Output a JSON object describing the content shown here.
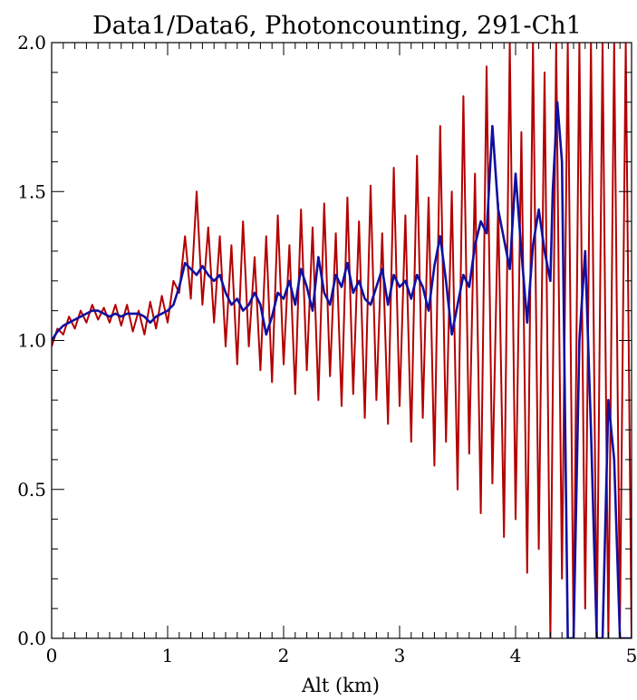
{
  "chart_data": {
    "type": "line",
    "title": "Data1/Data6, Photoncounting, 291-Ch1",
    "xlabel": "Alt (km)",
    "ylabel": "",
    "xlim": [
      0,
      5
    ],
    "ylim": [
      0,
      2
    ],
    "xticks": [
      0,
      1,
      2,
      3,
      4,
      5
    ],
    "xtick_labels": [
      "0",
      "1",
      "2",
      "3",
      "4",
      "5"
    ],
    "yticks": [
      0,
      0.5,
      1,
      1.5,
      2
    ],
    "ytick_labels": [
      "0.0",
      "0.5",
      "1.0",
      "1.5",
      "2.0"
    ],
    "grid": false,
    "series": [
      {
        "color": "#b30000",
        "description": "raw ratio (noisy)",
        "x": [
          0.0,
          0.05,
          0.1,
          0.15,
          0.2,
          0.25,
          0.3,
          0.35,
          0.4,
          0.45,
          0.5,
          0.55,
          0.6,
          0.65,
          0.7,
          0.75,
          0.8,
          0.85,
          0.9,
          0.95,
          1.0,
          1.05,
          1.1,
          1.15,
          1.2,
          1.25,
          1.3,
          1.35,
          1.4,
          1.45,
          1.5,
          1.55,
          1.6,
          1.65,
          1.7,
          1.75,
          1.8,
          1.85,
          1.9,
          1.95,
          2.0,
          2.05,
          2.1,
          2.15,
          2.2,
          2.25,
          2.3,
          2.35,
          2.4,
          2.45,
          2.5,
          2.55,
          2.6,
          2.65,
          2.7,
          2.75,
          2.8,
          2.85,
          2.9,
          2.95,
          3.0,
          3.05,
          3.1,
          3.15,
          3.2,
          3.25,
          3.3,
          3.35,
          3.4,
          3.45,
          3.5,
          3.55,
          3.6,
          3.65,
          3.7,
          3.75,
          3.8,
          3.85,
          3.9,
          3.95,
          4.0,
          4.05,
          4.1,
          4.15,
          4.2,
          4.25,
          4.3,
          4.35,
          4.4,
          4.45,
          4.5,
          4.55,
          4.6,
          4.65,
          4.7,
          4.75,
          4.8,
          4.85,
          4.9,
          4.95,
          5.0
        ],
        "y": [
          0.98,
          1.04,
          1.02,
          1.08,
          1.04,
          1.1,
          1.06,
          1.12,
          1.07,
          1.11,
          1.06,
          1.12,
          1.05,
          1.12,
          1.03,
          1.1,
          1.02,
          1.13,
          1.04,
          1.15,
          1.06,
          1.2,
          1.16,
          1.35,
          1.14,
          1.5,
          1.12,
          1.38,
          1.06,
          1.35,
          0.98,
          1.32,
          0.92,
          1.4,
          0.98,
          1.28,
          0.9,
          1.35,
          0.86,
          1.42,
          0.92,
          1.32,
          0.82,
          1.44,
          0.9,
          1.38,
          0.8,
          1.46,
          0.88,
          1.36,
          0.78,
          1.48,
          0.82,
          1.4,
          0.74,
          1.52,
          0.8,
          1.36,
          0.72,
          1.58,
          0.78,
          1.42,
          0.66,
          1.62,
          0.74,
          1.48,
          0.58,
          1.72,
          0.66,
          1.5,
          0.5,
          1.82,
          0.62,
          1.56,
          0.42,
          1.92,
          0.52,
          1.46,
          0.34,
          2.0,
          0.4,
          1.7,
          0.22,
          2.0,
          0.3,
          1.9,
          0.0,
          2.0,
          0.2,
          2.0,
          0.0,
          2.0,
          0.1,
          2.0,
          0.0,
          2.0,
          0.0,
          2.0,
          0.05,
          2.0,
          0.0
        ]
      },
      {
        "color": "#1010a0",
        "description": "smoothed ratio",
        "x": [
          0.0,
          0.05,
          0.1,
          0.15,
          0.2,
          0.25,
          0.3,
          0.35,
          0.4,
          0.45,
          0.5,
          0.55,
          0.6,
          0.65,
          0.7,
          0.75,
          0.8,
          0.85,
          0.9,
          0.95,
          1.0,
          1.05,
          1.1,
          1.15,
          1.2,
          1.25,
          1.3,
          1.35,
          1.4,
          1.45,
          1.5,
          1.55,
          1.6,
          1.65,
          1.7,
          1.75,
          1.8,
          1.85,
          1.9,
          1.95,
          2.0,
          2.05,
          2.1,
          2.15,
          2.2,
          2.25,
          2.3,
          2.35,
          2.4,
          2.45,
          2.5,
          2.55,
          2.6,
          2.65,
          2.7,
          2.75,
          2.8,
          2.85,
          2.9,
          2.95,
          3.0,
          3.05,
          3.1,
          3.15,
          3.2,
          3.25,
          3.3,
          3.35,
          3.4,
          3.45,
          3.5,
          3.55,
          3.6,
          3.65,
          3.7,
          3.75,
          3.8,
          3.85,
          3.9,
          3.95,
          4.0,
          4.05,
          4.1,
          4.15,
          4.2,
          4.25,
          4.3,
          4.32,
          4.36,
          4.4,
          4.45,
          4.5,
          4.55,
          4.6,
          4.65,
          4.7,
          4.75,
          4.8,
          4.85,
          4.9,
          4.95,
          5.0
        ],
        "y": [
          1.0,
          1.03,
          1.05,
          1.06,
          1.07,
          1.08,
          1.09,
          1.1,
          1.1,
          1.09,
          1.08,
          1.09,
          1.08,
          1.09,
          1.09,
          1.09,
          1.08,
          1.06,
          1.08,
          1.09,
          1.1,
          1.12,
          1.18,
          1.26,
          1.24,
          1.22,
          1.25,
          1.22,
          1.2,
          1.22,
          1.16,
          1.12,
          1.14,
          1.1,
          1.12,
          1.16,
          1.12,
          1.02,
          1.08,
          1.16,
          1.14,
          1.2,
          1.12,
          1.24,
          1.18,
          1.1,
          1.28,
          1.16,
          1.12,
          1.22,
          1.18,
          1.26,
          1.16,
          1.2,
          1.14,
          1.12,
          1.18,
          1.24,
          1.12,
          1.22,
          1.18,
          1.2,
          1.14,
          1.22,
          1.18,
          1.1,
          1.25,
          1.35,
          1.2,
          1.02,
          1.12,
          1.22,
          1.18,
          1.32,
          1.4,
          1.36,
          1.72,
          1.44,
          1.34,
          1.24,
          1.56,
          1.3,
          1.06,
          1.32,
          1.44,
          1.3,
          1.2,
          1.5,
          1.8,
          1.6,
          0.0,
          0.0,
          1.0,
          1.3,
          0.7,
          0.0,
          0.0,
          0.8,
          0.6,
          0.0,
          0.0,
          0.0
        ]
      }
    ]
  }
}
